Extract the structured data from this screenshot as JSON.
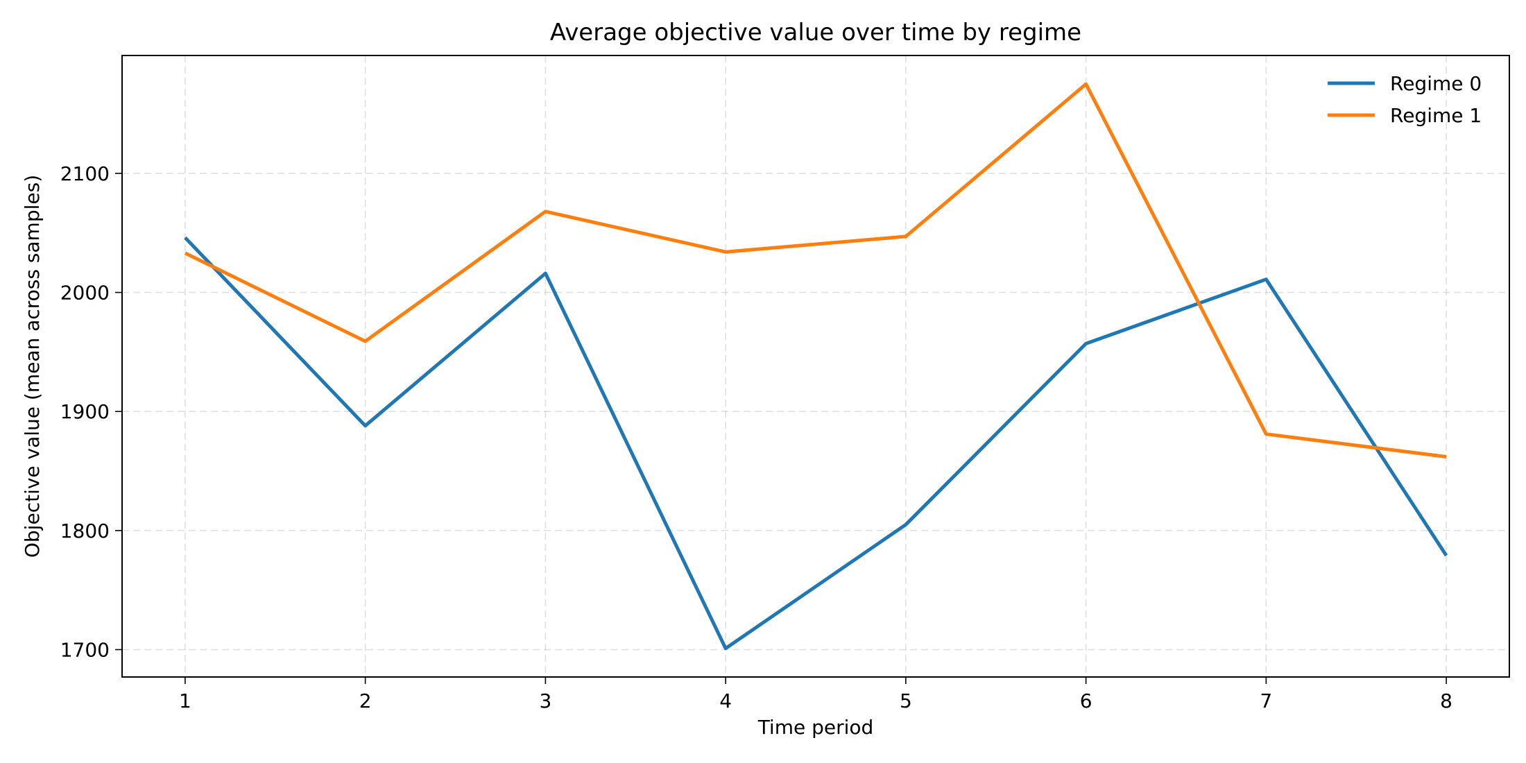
{
  "chart_data": {
    "type": "line",
    "title": "Average objective value over time by regime",
    "xlabel": "Time period",
    "ylabel": "Objective value (mean across samples)",
    "x": [
      1,
      2,
      3,
      4,
      5,
      6,
      7,
      8
    ],
    "xlim": [
      0.65,
      8.35
    ],
    "ylim": [
      1677,
      2199
    ],
    "xticks": [
      1,
      2,
      3,
      4,
      5,
      6,
      7,
      8
    ],
    "yticks": [
      1700,
      1800,
      1900,
      2000,
      2100
    ],
    "grid": true,
    "legend_position": "top-right",
    "series": [
      {
        "name": "Regime 0",
        "color": "#1f77b4",
        "values": [
          2046,
          1888,
          2016,
          1701,
          1805,
          1957,
          2011,
          1779
        ]
      },
      {
        "name": "Regime 1",
        "color": "#ff7f0e",
        "values": [
          2033,
          1959,
          2068,
          2034,
          2047,
          2175,
          1881,
          1862
        ]
      }
    ]
  }
}
